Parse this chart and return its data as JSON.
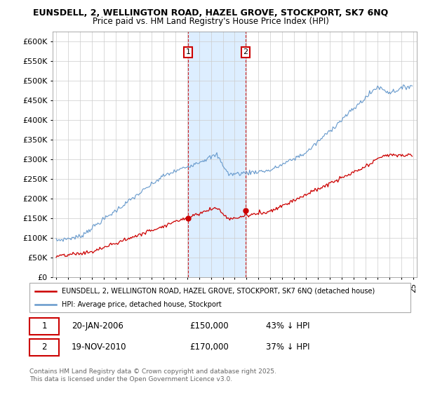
{
  "title_line1": "EUNSDELL, 2, WELLINGTON ROAD, HAZEL GROVE, STOCKPORT, SK7 6NQ",
  "title_line2": "Price paid vs. HM Land Registry's House Price Index (HPI)",
  "ylim": [
    0,
    625000
  ],
  "yticks": [
    0,
    50000,
    100000,
    150000,
    200000,
    250000,
    300000,
    350000,
    400000,
    450000,
    500000,
    550000,
    600000
  ],
  "legend_line1": "EUNSDELL, 2, WELLINGTON ROAD, HAZEL GROVE, STOCKPORT, SK7 6NQ (detached house)",
  "legend_line2": "HPI: Average price, detached house, Stockport",
  "transaction1_date": "20-JAN-2006",
  "transaction1_price": "£150,000",
  "transaction1_hpi": "43% ↓ HPI",
  "transaction2_date": "19-NOV-2010",
  "transaction2_price": "£170,000",
  "transaction2_hpi": "37% ↓ HPI",
  "footnote": "Contains HM Land Registry data © Crown copyright and database right 2025.\nThis data is licensed under the Open Government Licence v3.0.",
  "sale_color": "#cc0000",
  "hpi_color": "#6699cc",
  "vline_color": "#cc0000",
  "shade_color": "#ddeeff",
  "background_color": "#ffffff",
  "grid_color": "#cccccc",
  "t1_year": 2006.05,
  "t2_year": 2010.88,
  "t1_price": 150000,
  "t2_price": 170000,
  "xmin": 1994.7,
  "xmax": 2025.3
}
